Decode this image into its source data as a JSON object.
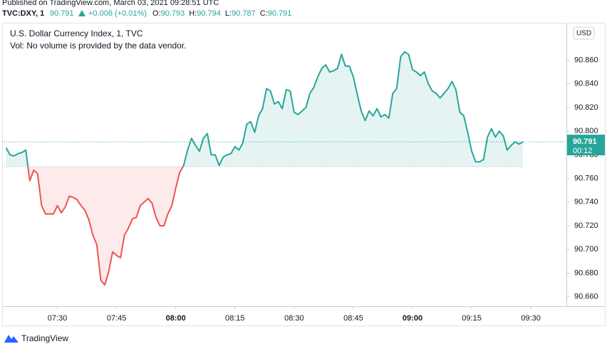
{
  "header": {
    "published": "Published on TradingView.com, March 03, 2021 09:28:51 UTC",
    "symbol": "TVC:DXY, 1",
    "last": "90.791",
    "change": "+0.006 (+0.01%)",
    "ohlc": [
      {
        "label": "O:",
        "value": "90.793"
      },
      {
        "label": "H:",
        "value": "90.794"
      },
      {
        "label": "L:",
        "value": "90.787"
      },
      {
        "label": "C:",
        "value": "90.791"
      }
    ]
  },
  "chart_data": {
    "type": "baseline",
    "title": "U.S. Dollar Currency Index, 1, TVC",
    "subtitle": "Vol: No volume is provided by the data vendor.",
    "currency_button": "USD",
    "countdown": "00:12",
    "baseline": 90.77,
    "colors": {
      "up": "#26a69a",
      "down": "#ef5350"
    },
    "x": [
      437,
      438,
      439,
      440,
      441,
      442,
      443,
      444,
      445,
      446,
      447,
      448,
      449,
      450,
      451,
      452,
      453,
      454,
      455,
      456,
      457,
      458,
      459,
      460,
      461,
      462,
      463,
      464,
      465,
      466,
      467,
      468,
      469,
      470,
      471,
      472,
      473,
      474,
      475,
      476,
      477,
      478,
      479,
      480,
      481,
      482,
      483,
      484,
      485,
      486,
      487,
      488,
      489,
      490,
      491,
      492,
      493,
      494,
      495,
      496,
      497,
      498,
      499,
      500,
      501,
      502,
      503,
      504,
      505,
      506,
      507,
      508,
      509,
      510,
      511,
      512,
      513,
      514,
      515,
      516,
      517,
      518,
      519,
      520,
      521,
      522,
      523,
      524,
      525,
      526,
      527,
      528,
      529,
      530,
      531,
      532,
      533,
      534,
      535,
      536,
      537,
      538,
      539,
      540,
      541,
      542,
      543,
      544,
      545,
      546,
      547,
      548,
      549,
      550,
      551,
      552,
      553,
      554,
      555,
      556,
      557,
      558,
      559,
      560,
      561,
      562,
      563,
      564,
      565,
      566,
      567,
      568
    ],
    "values": [
      90.786,
      90.78,
      90.779,
      90.781,
      90.782,
      90.784,
      90.758,
      90.767,
      90.764,
      90.737,
      90.73,
      90.73,
      90.73,
      90.737,
      90.731,
      90.736,
      90.745,
      90.744,
      90.742,
      90.737,
      90.733,
      90.725,
      90.712,
      90.704,
      90.674,
      90.67,
      90.681,
      90.698,
      90.695,
      90.693,
      90.712,
      90.718,
      90.726,
      90.727,
      90.737,
      90.74,
      90.743,
      90.739,
      90.727,
      90.72,
      90.72,
      90.73,
      90.737,
      90.752,
      90.765,
      90.771,
      90.784,
      90.794,
      90.788,
      90.783,
      90.794,
      90.798,
      90.78,
      90.78,
      90.771,
      90.778,
      90.78,
      90.781,
      90.787,
      90.784,
      90.79,
      90.806,
      90.808,
      90.799,
      90.813,
      90.819,
      90.836,
      90.834,
      90.823,
      90.825,
      90.819,
      90.835,
      90.834,
      90.816,
      90.814,
      90.817,
      90.82,
      90.832,
      90.837,
      90.846,
      90.853,
      90.856,
      90.85,
      90.851,
      90.853,
      90.865,
      90.855,
      90.855,
      90.846,
      90.831,
      90.817,
      90.809,
      90.817,
      90.813,
      90.819,
      90.812,
      90.814,
      90.811,
      90.832,
      90.836,
      90.863,
      90.867,
      90.865,
      90.852,
      90.85,
      90.847,
      90.85,
      90.84,
      90.834,
      90.832,
      90.828,
      90.832,
      90.836,
      90.842,
      90.835,
      90.816,
      90.813,
      90.799,
      90.783,
      90.774,
      90.774,
      90.776,
      90.795,
      90.802,
      90.795,
      90.8,
      90.796,
      90.784,
      90.788,
      90.791,
      90.789,
      90.791
    ],
    "xlim": [
      436,
      579
    ],
    "xticks": [
      {
        "value": 450,
        "label": "07:30"
      },
      {
        "value": 465,
        "label": "07:45"
      },
      {
        "value": 480,
        "label": "08:00"
      },
      {
        "value": 495,
        "label": "08:15"
      },
      {
        "value": 510,
        "label": "08:30"
      },
      {
        "value": 525,
        "label": "08:45"
      },
      {
        "value": 540,
        "label": "09:00"
      },
      {
        "value": 555,
        "label": "09:15"
      },
      {
        "value": 570,
        "label": "09:30"
      }
    ],
    "bold_xticks": [
      480,
      540
    ],
    "ylim": [
      90.652,
      90.891
    ],
    "yticks": [
      {
        "value": 90.66,
        "label": "90.660"
      },
      {
        "value": 90.68,
        "label": "90.680"
      },
      {
        "value": 90.7,
        "label": "90.700"
      },
      {
        "value": 90.72,
        "label": "90.720"
      },
      {
        "value": 90.74,
        "label": "90.740"
      },
      {
        "value": 90.76,
        "label": "90.760"
      },
      {
        "value": 90.78,
        "label": "90.780"
      },
      {
        "value": 90.8,
        "label": "90.800"
      },
      {
        "value": 90.82,
        "label": "90.820"
      },
      {
        "value": 90.84,
        "label": "90.840"
      },
      {
        "value": 90.86,
        "label": "90.860"
      }
    ],
    "grid": false
  },
  "footer": {
    "brand": "TradingView"
  }
}
